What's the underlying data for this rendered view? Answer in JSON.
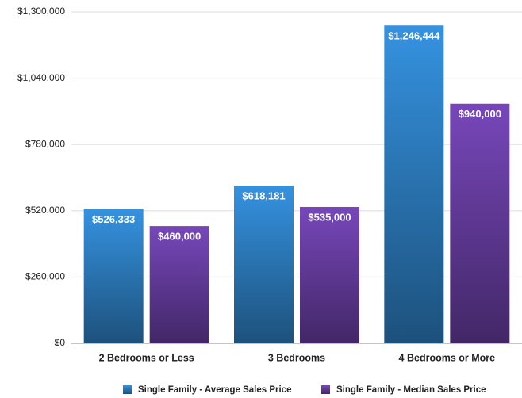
{
  "chart_data": {
    "type": "bar",
    "categories": [
      "2 Bedrooms or Less",
      "3 Bedrooms",
      "4 Bedrooms or More"
    ],
    "series": [
      {
        "name": "Single Family - Average Sales Price",
        "color": "#2f82c8",
        "values": [
          526333,
          618181,
          1246444
        ],
        "value_labels": [
          "$526,333",
          "$618,181",
          "$1,246,444"
        ]
      },
      {
        "name": "Single Family - Median Sales Price",
        "color": "#6a3fa6",
        "values": [
          460000,
          535000,
          940000
        ],
        "value_labels": [
          "$460,000",
          "$535,000",
          "$940,000"
        ]
      }
    ],
    "ylim": [
      0,
      1300000
    ],
    "yticks": [
      {
        "value": 0,
        "label": "$0"
      },
      {
        "value": 260000,
        "label": "$260,000"
      },
      {
        "value": 520000,
        "label": "$520,000"
      },
      {
        "value": 780000,
        "label": "$780,000"
      },
      {
        "value": 1040000,
        "label": "$1,040,000"
      },
      {
        "value": 1300000,
        "label": "$1,300,000"
      }
    ],
    "grid": true
  }
}
